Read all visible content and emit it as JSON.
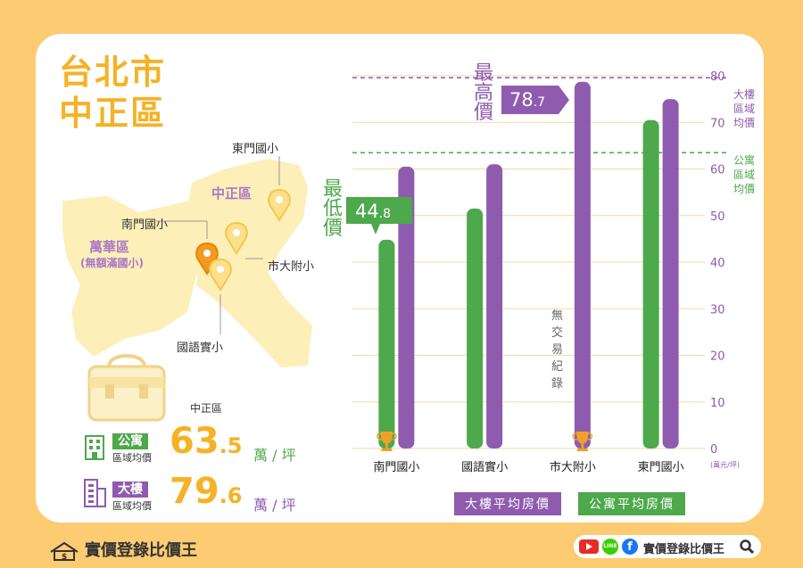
{
  "title": {
    "line1": "台北市",
    "line2": "中正區"
  },
  "map": {
    "district_main": "中正區",
    "district_other": "萬華區",
    "district_other_note": "(無額滿國小)",
    "schools": [
      "東門國小",
      "南門國小",
      "市大附小",
      "國語實小"
    ]
  },
  "stats": {
    "district_name": "中正區",
    "apartment": {
      "badge": "公寓",
      "label": "區域均價",
      "int": "63",
      "dec": ".5",
      "unit": "萬 / 坪"
    },
    "building": {
      "badge": "大樓",
      "label": "區域均價",
      "int": "79",
      "dec": ".6",
      "unit": "萬 / 坪"
    }
  },
  "colors": {
    "apartment": "#4EA84C",
    "building": "#8E5BAE",
    "accent": "#F5B226",
    "background": "#FDCB72"
  },
  "legend": {
    "building": "大樓平均房價",
    "apartment": "公寓平均房價"
  },
  "annotations": {
    "max_label": "最高價",
    "max_value_int": "78",
    "max_value_dec": ".7",
    "min_label": "最低價",
    "min_value_int": "44",
    "min_value_dec": ".8",
    "no_record": "無交易紀錄",
    "building_avg_label": "大樓區域均價",
    "apartment_avg_label": "公寓區域均價",
    "yunit": "(萬元/坪)"
  },
  "footer": {
    "brand": "實價登錄比價王",
    "search_brand": "實價登錄比價王"
  },
  "chart_data": {
    "type": "bar",
    "categories": [
      "南門國小",
      "國語實小",
      "市大附小",
      "東門國小"
    ],
    "series": [
      {
        "name": "公寓平均房價",
        "values": [
          44.8,
          51.5,
          null,
          70.5
        ]
      },
      {
        "name": "大樓平均房價",
        "values": [
          60.5,
          61.0,
          78.7,
          75.0
        ]
      }
    ],
    "reference_lines": [
      {
        "label": "大樓區域均價",
        "value": 79.6
      },
      {
        "label": "公寓區域均價",
        "value": 63.5
      }
    ],
    "ylim": [
      0,
      80
    ],
    "yticks": [
      0,
      10,
      20,
      30,
      40,
      50,
      60,
      70,
      80
    ],
    "grid": true,
    "legend": "bottom"
  }
}
